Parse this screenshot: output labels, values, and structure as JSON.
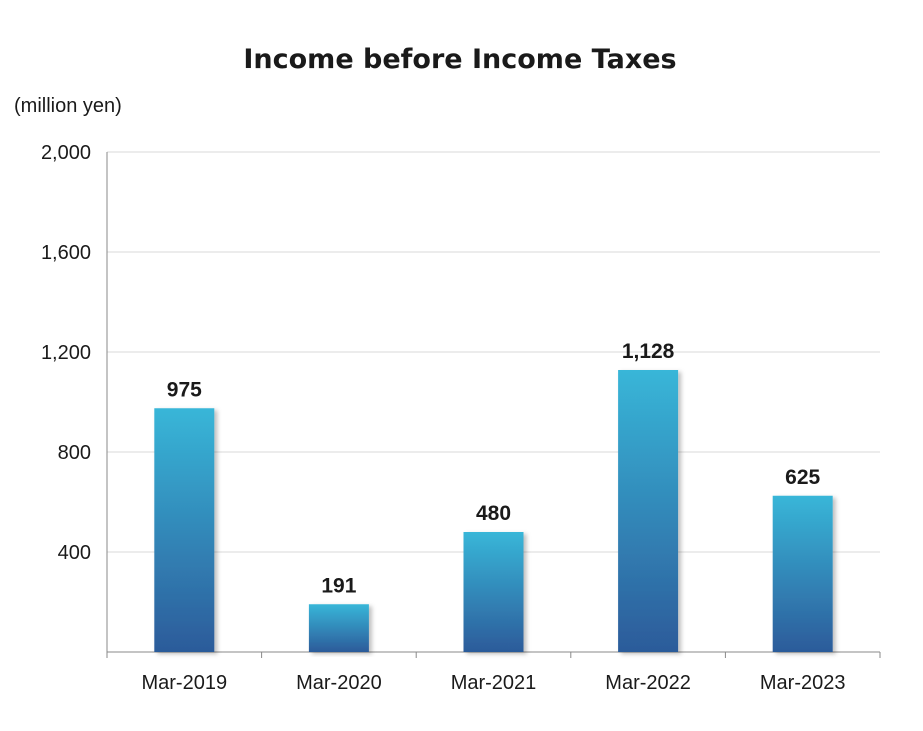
{
  "chart_data": {
    "type": "bar",
    "title": "Income before Income Taxes",
    "unit_label": "(million yen)",
    "categories": [
      "Mar-2019",
      "Mar-2020",
      "Mar-2021",
      "Mar-2022",
      "Mar-2023"
    ],
    "values": [
      975,
      191,
      480,
      1128,
      625
    ],
    "value_labels": [
      "975",
      "191",
      "480",
      "1,128",
      "625"
    ],
    "ylim": [
      0,
      2000
    ],
    "y_ticks": [
      400,
      800,
      1200,
      1600,
      2000
    ],
    "y_tick_labels": [
      "400",
      "800",
      "1,200",
      "1,600",
      "2,000"
    ],
    "grid": true,
    "legend": "none",
    "colors": {
      "bar_top": "#38b6d8",
      "bar_bottom": "#2c5b9a",
      "grid": "#d9d9d9",
      "axis": "#888888"
    }
  }
}
